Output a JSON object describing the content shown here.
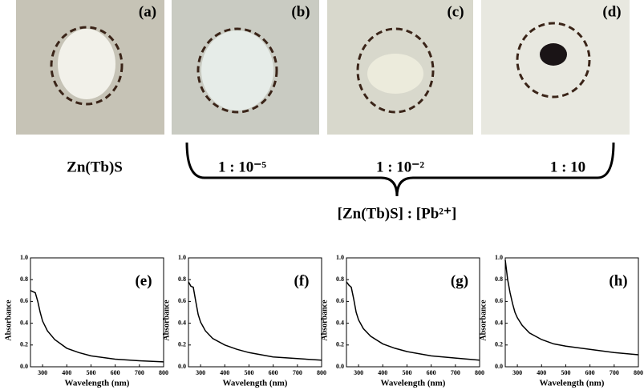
{
  "photos": [
    {
      "label": "(a)"
    },
    {
      "label": "(b)"
    },
    {
      "label": "(c)"
    },
    {
      "label": "(d)"
    }
  ],
  "captions": [
    "Zn(Tb)S",
    "1 : 10⁻⁵",
    "1 : 10⁻²",
    "1 : 10"
  ],
  "bracket_label": "[Zn(Tb)S] : [Pb²⁺]",
  "chart_data": [
    {
      "type": "line",
      "label": "(e)",
      "xlabel": "Wavelength (nm)",
      "ylabel": "Absorbance",
      "color": "#000000",
      "x": [
        250,
        260,
        270,
        280,
        290,
        300,
        320,
        350,
        400,
        450,
        500,
        600,
        700,
        800
      ],
      "values": [
        0.7,
        0.69,
        0.68,
        0.6,
        0.5,
        0.42,
        0.33,
        0.25,
        0.17,
        0.13,
        0.1,
        0.07,
        0.055,
        0.045
      ],
      "xlim": [
        250,
        800
      ],
      "xticks": [
        300,
        400,
        500,
        600,
        700,
        800
      ],
      "ylim": [
        0,
        1
      ],
      "yticks": [
        {
          "value": 0,
          "label": "0.0"
        },
        0.2,
        0.4,
        0.6,
        0.8,
        {
          "value": 1,
          "label": "1.0"
        }
      ]
    },
    {
      "type": "line",
      "label": "(f)",
      "xlabel": "Wavelength (nm)",
      "ylabel": "Absorbance",
      "color": "#000000",
      "x": [
        250,
        260,
        270,
        280,
        290,
        300,
        320,
        350,
        400,
        450,
        500,
        600,
        700,
        800
      ],
      "values": [
        0.78,
        0.74,
        0.73,
        0.6,
        0.48,
        0.41,
        0.33,
        0.26,
        0.2,
        0.16,
        0.13,
        0.09,
        0.075,
        0.06
      ],
      "xlim": [
        250,
        800
      ],
      "xticks": [
        300,
        400,
        500,
        600,
        700,
        800
      ],
      "ylim": [
        0,
        1
      ],
      "yticks": [
        {
          "value": 0,
          "label": "0.0"
        },
        0.2,
        0.4,
        0.6,
        0.8,
        {
          "value": 1,
          "label": "1.0"
        }
      ]
    },
    {
      "type": "line",
      "label": "(g)",
      "xlabel": "Wavelength (nm)",
      "ylabel": "Absorbance",
      "color": "#000000",
      "x": [
        250,
        260,
        270,
        280,
        290,
        300,
        320,
        350,
        400,
        450,
        500,
        600,
        700,
        800
      ],
      "values": [
        0.78,
        0.75,
        0.73,
        0.62,
        0.5,
        0.43,
        0.35,
        0.28,
        0.21,
        0.17,
        0.14,
        0.1,
        0.08,
        0.06
      ],
      "xlim": [
        250,
        800
      ],
      "xticks": [
        300,
        400,
        500,
        600,
        700,
        800
      ],
      "ylim": [
        0,
        1
      ],
      "yticks": [
        {
          "value": 0,
          "label": "0.0"
        },
        0.2,
        0.4,
        0.6,
        0.8,
        {
          "value": 1,
          "label": "1.0"
        }
      ]
    },
    {
      "type": "line",
      "label": "(h)",
      "xlabel": "Wavelength (nm)",
      "ylabel": "Absorbance",
      "color": "#000000",
      "x": [
        250,
        260,
        270,
        280,
        290,
        300,
        320,
        350,
        400,
        450,
        500,
        600,
        700,
        800
      ],
      "values": [
        0.98,
        0.8,
        0.68,
        0.58,
        0.5,
        0.45,
        0.38,
        0.31,
        0.25,
        0.21,
        0.19,
        0.16,
        0.13,
        0.11
      ],
      "xlim": [
        250,
        800
      ],
      "xticks": [
        300,
        400,
        500,
        600,
        700,
        800
      ],
      "ylim": [
        0,
        1
      ],
      "yticks": [
        {
          "value": 0,
          "label": "0.0"
        },
        0.2,
        0.4,
        0.6,
        0.8,
        {
          "value": 1,
          "label": "1.0"
        }
      ]
    }
  ]
}
